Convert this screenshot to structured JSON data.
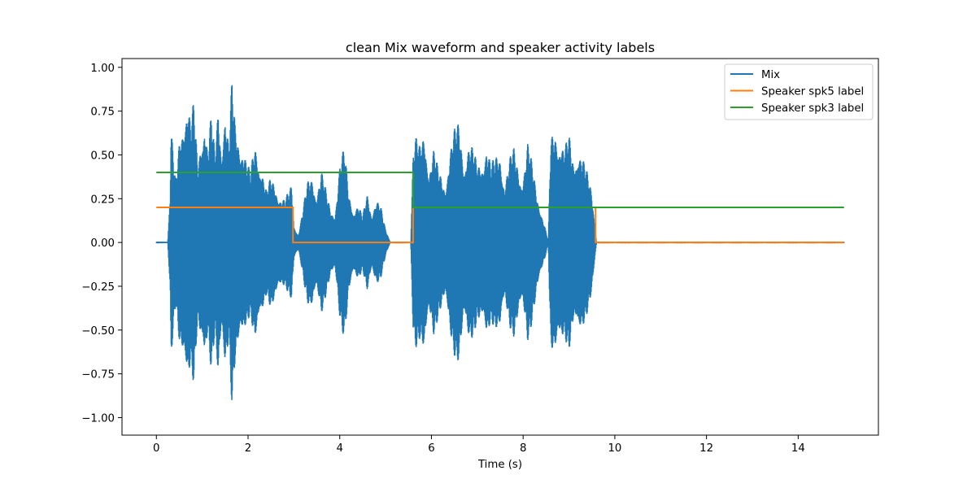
{
  "chart_data": {
    "type": "line",
    "title": "clean Mix waveform and speaker activity labels",
    "xlabel": "Time (s)",
    "ylabel": "",
    "xlim": [
      -0.75,
      15.75
    ],
    "ylim": [
      -1.1,
      1.05
    ],
    "xticks": [
      0,
      2,
      4,
      6,
      8,
      10,
      12,
      14
    ],
    "xtick_labels": [
      "0",
      "2",
      "4",
      "6",
      "8",
      "10",
      "12",
      "14"
    ],
    "yticks": [
      -1.0,
      -0.75,
      -0.5,
      -0.25,
      0.0,
      0.25,
      0.5,
      0.75,
      1.0
    ],
    "ytick_labels": [
      "−1.00",
      "−0.75",
      "−0.50",
      "−0.25",
      "0.00",
      "0.25",
      "0.50",
      "0.75",
      "1.00"
    ],
    "grid": false,
    "legend_position": "top-right",
    "series": [
      {
        "name": "Mix",
        "kind": "waveform",
        "color": "#1f77b4",
        "envelope": {
          "t": [
            0.0,
            0.25,
            0.3,
            0.32,
            0.36,
            0.42,
            0.5,
            0.6,
            0.68,
            0.75,
            0.82,
            0.9,
            0.98,
            1.05,
            1.12,
            1.2,
            1.28,
            1.35,
            1.42,
            1.5,
            1.58,
            1.65,
            1.72,
            1.8,
            1.88,
            1.95,
            2.05,
            2.15,
            2.22,
            2.3,
            2.4,
            2.5,
            2.6,
            2.7,
            2.8,
            2.9,
            2.95,
            3.0,
            3.1,
            3.3,
            3.4,
            3.5,
            3.6,
            3.7,
            3.8,
            3.9,
            4.0,
            4.1,
            4.2,
            4.3,
            4.4,
            4.5,
            4.6,
            4.7,
            4.8,
            4.9,
            5.0,
            5.1,
            5.2,
            5.55,
            5.6,
            5.65,
            5.75,
            5.85,
            5.95,
            6.05,
            6.15,
            6.3,
            6.4,
            6.5,
            6.6,
            6.7,
            6.8,
            6.9,
            7.0,
            7.1,
            7.2,
            7.3,
            7.4,
            7.5,
            7.6,
            7.7,
            7.8,
            7.9,
            8.0,
            8.1,
            8.2,
            8.3,
            8.55,
            8.6,
            8.7,
            8.8,
            8.9,
            9.0,
            9.1,
            9.2,
            9.3,
            9.4,
            9.5,
            9.6,
            15.0
          ],
          "amp": [
            0.005,
            0.005,
            0.3,
            0.68,
            0.55,
            0.35,
            0.6,
            0.8,
            0.88,
            0.7,
            0.82,
            0.45,
            0.65,
            0.8,
            0.55,
            0.75,
            0.5,
            0.85,
            0.6,
            0.8,
            0.55,
            0.95,
            0.7,
            0.65,
            0.6,
            0.5,
            0.4,
            0.6,
            0.55,
            0.45,
            0.3,
            0.38,
            0.35,
            0.28,
            0.25,
            0.3,
            0.35,
            0.1,
            0.05,
            0.35,
            0.4,
            0.3,
            0.42,
            0.3,
            0.2,
            0.18,
            0.45,
            0.55,
            0.3,
            0.2,
            0.22,
            0.15,
            0.3,
            0.18,
            0.25,
            0.2,
            0.08,
            0.005,
            0.005,
            0.005,
            0.55,
            0.62,
            0.55,
            0.68,
            0.45,
            0.55,
            0.42,
            0.35,
            0.55,
            0.65,
            0.7,
            0.5,
            0.6,
            0.55,
            0.45,
            0.5,
            0.6,
            0.45,
            0.5,
            0.55,
            0.35,
            0.48,
            0.55,
            0.45,
            0.4,
            0.58,
            0.45,
            0.3,
            0.005,
            0.6,
            0.68,
            0.65,
            0.55,
            0.62,
            0.48,
            0.6,
            0.5,
            0.4,
            0.3,
            0.005,
            0.005
          ]
        }
      },
      {
        "name": "Speaker spk5 label",
        "kind": "step",
        "color": "#ff7f0e",
        "x": [
          0.0,
          2.98,
          2.98,
          5.6,
          5.6,
          9.58,
          9.58,
          15.0
        ],
        "y": [
          0.2,
          0.2,
          0.0,
          0.0,
          0.2,
          0.2,
          0.0,
          0.0
        ]
      },
      {
        "name": "Speaker spk3 label",
        "kind": "step",
        "color": "#2ca02c",
        "x": [
          0.0,
          5.6,
          5.6,
          15.0
        ],
        "y": [
          0.4,
          0.4,
          0.2,
          0.2
        ]
      }
    ]
  }
}
